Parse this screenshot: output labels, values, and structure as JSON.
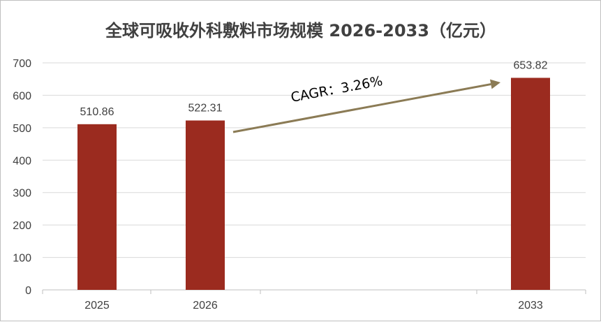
{
  "chart_data": {
    "type": "bar",
    "title": "全球可吸收外科敷料市场规模 2026-2033（亿元）",
    "categories": [
      "2025",
      "2026",
      "2033"
    ],
    "values": [
      510.86,
      522.31,
      653.82
    ],
    "data_labels": [
      "510.86",
      "522.31",
      "653.82"
    ],
    "ylim": [
      0,
      700
    ],
    "yticks": [
      "0",
      "100",
      "200",
      "300",
      "400",
      "500",
      "600",
      "700"
    ],
    "xlabel": "",
    "ylabel": "",
    "grid": true,
    "legend": "none",
    "bar_color": "#9b2b1f",
    "annotation": {
      "text": "CAGR：3.26%",
      "arrow_color": "#8b7b55"
    }
  }
}
